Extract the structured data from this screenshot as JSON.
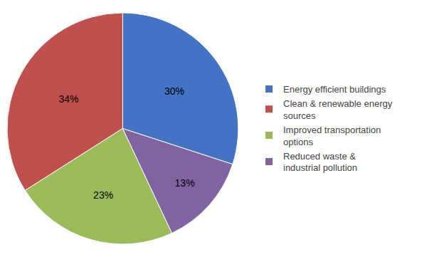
{
  "chart_data": {
    "type": "pie",
    "categories": [
      "Energy efficient buildings",
      "Clean & renewable energy\nsources",
      "Improved transportation\noptions",
      "Reduced waste &\nindustrial pollution"
    ],
    "values": [
      30,
      34,
      23,
      13
    ],
    "value_labels": [
      "30%",
      "34%",
      "23%",
      "13%"
    ],
    "colors": [
      "#4472C4",
      "#C0504D",
      "#9BBB59",
      "#8064A2"
    ],
    "data_labels": true,
    "legend": "right"
  }
}
